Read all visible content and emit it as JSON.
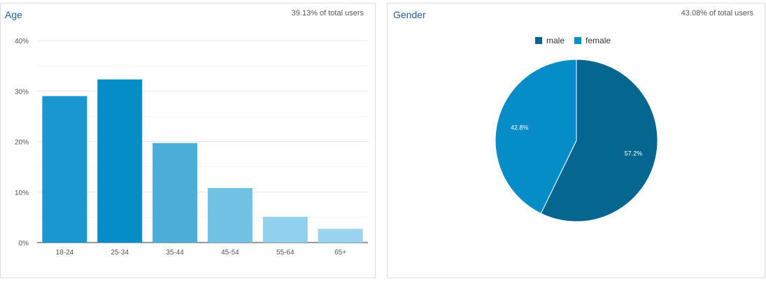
{
  "age_card": {
    "title": "Age",
    "subtitle": "39.13% of total users"
  },
  "gender_card": {
    "title": "Gender",
    "subtitle": "43.08% of total users"
  },
  "chart_data": [
    {
      "type": "bar",
      "title": "Age",
      "categories": [
        "18-24",
        "25-34",
        "35-44",
        "45-54",
        "55-64",
        "65+"
      ],
      "values": [
        29.0,
        32.3,
        19.7,
        10.8,
        5.1,
        2.7
      ],
      "ylim": [
        0,
        40
      ],
      "yticks": [
        "0%",
        "10%",
        "20%",
        "30%",
        "40%"
      ],
      "grid": true,
      "colors": [
        "#1a96d0",
        "#058dc7",
        "#4aaed9",
        "#72c2e6",
        "#91d1ed",
        "#98d4ef"
      ]
    },
    {
      "type": "pie",
      "title": "Gender",
      "labels": [
        "male",
        "female"
      ],
      "values": [
        57.2,
        42.8
      ],
      "value_labels": [
        "57.2%",
        "42.8%"
      ],
      "colors": [
        "#05668f",
        "#058dc7"
      ],
      "legend_position": "top"
    }
  ]
}
